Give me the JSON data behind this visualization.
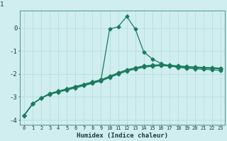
{
  "xlabel": "Humidex (Indice chaleur)",
  "x": [
    0,
    1,
    2,
    3,
    4,
    5,
    6,
    7,
    8,
    9,
    10,
    11,
    12,
    13,
    14,
    15,
    16,
    17,
    18,
    19,
    20,
    21,
    22,
    23
  ],
  "line1": [
    -3.8,
    -3.3,
    -3.05,
    -2.85,
    -2.75,
    -2.65,
    -2.55,
    -2.45,
    -2.35,
    -2.25,
    -0.05,
    0.05,
    0.5,
    -0.05,
    -1.05,
    -1.35,
    -1.55,
    -1.65,
    -1.72,
    -1.75,
    -1.78,
    -1.8,
    -1.82,
    -1.85
  ],
  "line2": [
    -3.8,
    -3.3,
    -3.05,
    -2.85,
    -2.75,
    -2.65,
    -2.55,
    -2.45,
    -2.35,
    -2.25,
    -2.1,
    -1.95,
    -1.82,
    -1.73,
    -1.65,
    -1.62,
    -1.6,
    -1.62,
    -1.65,
    -1.68,
    -1.7,
    -1.72,
    -1.73,
    -1.75
  ],
  "line3": [
    -3.8,
    -3.3,
    -3.05,
    -2.87,
    -2.77,
    -2.68,
    -2.58,
    -2.48,
    -2.38,
    -2.28,
    -2.13,
    -1.98,
    -1.85,
    -1.76,
    -1.68,
    -1.64,
    -1.62,
    -1.64,
    -1.67,
    -1.69,
    -1.71,
    -1.73,
    -1.74,
    -1.76
  ],
  "line4": [
    -3.8,
    -3.3,
    -3.05,
    -2.89,
    -2.79,
    -2.7,
    -2.61,
    -2.51,
    -2.41,
    -2.31,
    -2.16,
    -2.01,
    -1.88,
    -1.79,
    -1.71,
    -1.67,
    -1.64,
    -1.66,
    -1.69,
    -1.71,
    -1.73,
    -1.75,
    -1.76,
    -1.78
  ],
  "line_color": "#1a7a5e",
  "bg_color": "#d0eef0",
  "grid_color": "#b8dde0",
  "ylim": [
    -4.2,
    0.75
  ],
  "yticks": [
    -4,
    -3,
    -2,
    -1,
    0
  ],
  "ytick_labels": [
    "-4",
    "-3",
    "-2",
    "-1",
    "0"
  ],
  "marker": "D",
  "marker_size": 2.5,
  "title_top_label": "1"
}
